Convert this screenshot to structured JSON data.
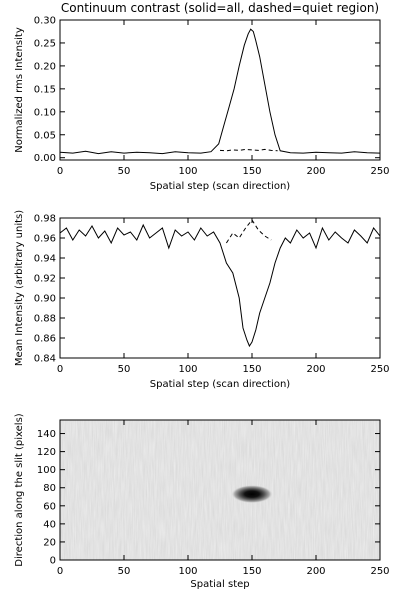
{
  "chart_data": [
    {
      "type": "line",
      "title": "Continuum contrast (solid=all, dashed=quiet region)",
      "xlabel": "Spatial step (scan direction)",
      "ylabel": "Normalized rms Intensity",
      "xlim": [
        0,
        250
      ],
      "ylim": [
        -0.005,
        0.3
      ],
      "xticks": [
        0,
        50,
        100,
        150,
        200,
        250
      ],
      "yticks": [
        0.0,
        0.05,
        0.1,
        0.15,
        0.2,
        0.25,
        0.3
      ],
      "ytick_labels": [
        "0.00",
        "0.05",
        "0.10",
        "0.15",
        "0.20",
        "0.25",
        "0.30"
      ],
      "series": [
        {
          "style": "solid",
          "x": [
            0,
            10,
            20,
            30,
            40,
            50,
            60,
            70,
            80,
            90,
            100,
            110,
            118,
            124,
            128,
            132,
            136,
            140,
            144,
            147,
            149,
            151,
            153,
            156,
            160,
            164,
            168,
            172,
            180,
            190,
            200,
            210,
            220,
            230,
            240,
            250
          ],
          "y": [
            0.012,
            0.01,
            0.014,
            0.009,
            0.013,
            0.01,
            0.012,
            0.011,
            0.009,
            0.013,
            0.011,
            0.01,
            0.013,
            0.03,
            0.07,
            0.11,
            0.15,
            0.2,
            0.245,
            0.27,
            0.28,
            0.275,
            0.255,
            0.22,
            0.16,
            0.1,
            0.05,
            0.015,
            0.011,
            0.01,
            0.012,
            0.011,
            0.01,
            0.013,
            0.011,
            0.01
          ]
        },
        {
          "style": "dashed",
          "x": [
            125,
            130,
            135,
            140,
            145,
            150,
            155,
            160,
            165,
            170
          ],
          "y": [
            0.016,
            0.015,
            0.017,
            0.016,
            0.018,
            0.017,
            0.016,
            0.018,
            0.016,
            0.015
          ]
        }
      ]
    },
    {
      "type": "line",
      "title": "",
      "xlabel": "Spatial step (scan direction)",
      "ylabel": "Mean Intensity (arbitrary units)",
      "xlim": [
        0,
        250
      ],
      "ylim": [
        0.84,
        0.98
      ],
      "xticks": [
        0,
        50,
        100,
        150,
        200,
        250
      ],
      "yticks": [
        0.84,
        0.86,
        0.88,
        0.9,
        0.92,
        0.94,
        0.96,
        0.98
      ],
      "ytick_labels": [
        "0.84",
        "0.86",
        "0.88",
        "0.90",
        "0.92",
        "0.94",
        "0.96",
        "0.98"
      ],
      "series": [
        {
          "style": "solid",
          "x": [
            0,
            5,
            10,
            15,
            20,
            25,
            30,
            35,
            40,
            45,
            50,
            55,
            60,
            65,
            70,
            75,
            80,
            85,
            90,
            95,
            100,
            105,
            110,
            115,
            120,
            125,
            130,
            135,
            140,
            143,
            146,
            148,
            150,
            153,
            156,
            160,
            164,
            168,
            172,
            176,
            180,
            185,
            190,
            195,
            200,
            205,
            210,
            215,
            220,
            225,
            230,
            235,
            240,
            245,
            250
          ],
          "y": [
            0.965,
            0.97,
            0.958,
            0.968,
            0.962,
            0.972,
            0.96,
            0.967,
            0.955,
            0.97,
            0.963,
            0.966,
            0.958,
            0.973,
            0.96,
            0.965,
            0.97,
            0.95,
            0.968,
            0.962,
            0.966,
            0.958,
            0.97,
            0.962,
            0.966,
            0.955,
            0.935,
            0.925,
            0.9,
            0.87,
            0.858,
            0.852,
            0.856,
            0.868,
            0.885,
            0.9,
            0.915,
            0.935,
            0.95,
            0.96,
            0.955,
            0.968,
            0.96,
            0.965,
            0.95,
            0.97,
            0.958,
            0.966,
            0.96,
            0.955,
            0.968,
            0.962,
            0.955,
            0.97,
            0.962
          ]
        },
        {
          "style": "dashed",
          "x": [
            130,
            135,
            140,
            145,
            150,
            155,
            160,
            165
          ],
          "y": [
            0.955,
            0.965,
            0.96,
            0.97,
            0.978,
            0.968,
            0.962,
            0.958
          ]
        }
      ]
    },
    {
      "type": "heatmap",
      "title": "",
      "xlabel": "Spatial step",
      "ylabel": "Direction along the slit (pixels)",
      "xlim": [
        0,
        250
      ],
      "ylim": [
        0,
        155
      ],
      "xticks": [
        0,
        50,
        100,
        150,
        200,
        250
      ],
      "yticks": [
        0,
        20,
        40,
        60,
        80,
        100,
        120,
        140
      ],
      "ytick_labels": [
        "0",
        "20",
        "40",
        "60",
        "80",
        "100",
        "120",
        "140"
      ],
      "colormap": "grayscale (dark = low intensity)",
      "feature": {
        "label": "dark spot",
        "center": [
          150,
          73
        ],
        "halfwidth": [
          16,
          10
        ]
      }
    }
  ]
}
